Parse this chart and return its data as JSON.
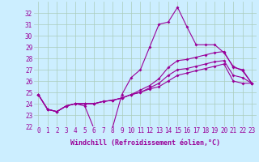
{
  "xlabel": "Windchill (Refroidissement éolien,°C)",
  "bg_color": "#cceeff",
  "line_color": "#990099",
  "grid_color": "#aaccbb",
  "ylim": [
    22,
    33
  ],
  "xlim": [
    -0.5,
    23.5
  ],
  "yticks": [
    22,
    23,
    24,
    25,
    26,
    27,
    28,
    29,
    30,
    31,
    32
  ],
  "xticks": [
    0,
    1,
    2,
    3,
    4,
    5,
    6,
    7,
    8,
    9,
    10,
    11,
    12,
    13,
    14,
    15,
    16,
    17,
    18,
    19,
    20,
    21,
    22,
    23
  ],
  "tick_fontsize": 5.5,
  "xlabel_fontsize": 6.0,
  "series": [
    [
      24.8,
      23.5,
      23.3,
      23.8,
      24.0,
      23.8,
      21.8,
      21.7,
      21.9,
      24.8,
      26.3,
      27.0,
      29.0,
      31.0,
      31.2,
      32.5,
      30.8,
      29.2,
      29.2,
      29.2,
      28.5,
      27.3,
      26.9,
      25.8
    ],
    [
      24.8,
      23.5,
      23.3,
      23.8,
      24.0,
      24.0,
      24.0,
      24.2,
      24.3,
      24.5,
      24.8,
      25.2,
      25.6,
      26.2,
      27.2,
      27.8,
      27.9,
      28.1,
      28.3,
      28.5,
      28.6,
      27.2,
      27.0,
      25.8
    ],
    [
      24.8,
      23.5,
      23.3,
      23.8,
      24.0,
      24.0,
      24.0,
      24.2,
      24.3,
      24.5,
      24.8,
      25.0,
      25.4,
      25.8,
      26.5,
      27.0,
      27.1,
      27.3,
      27.5,
      27.7,
      27.8,
      26.5,
      26.3,
      25.8
    ],
    [
      24.8,
      23.5,
      23.3,
      23.8,
      24.0,
      24.0,
      24.0,
      24.2,
      24.3,
      24.5,
      24.8,
      25.0,
      25.3,
      25.5,
      26.0,
      26.5,
      26.7,
      26.9,
      27.1,
      27.3,
      27.5,
      26.0,
      25.8,
      25.8
    ]
  ]
}
